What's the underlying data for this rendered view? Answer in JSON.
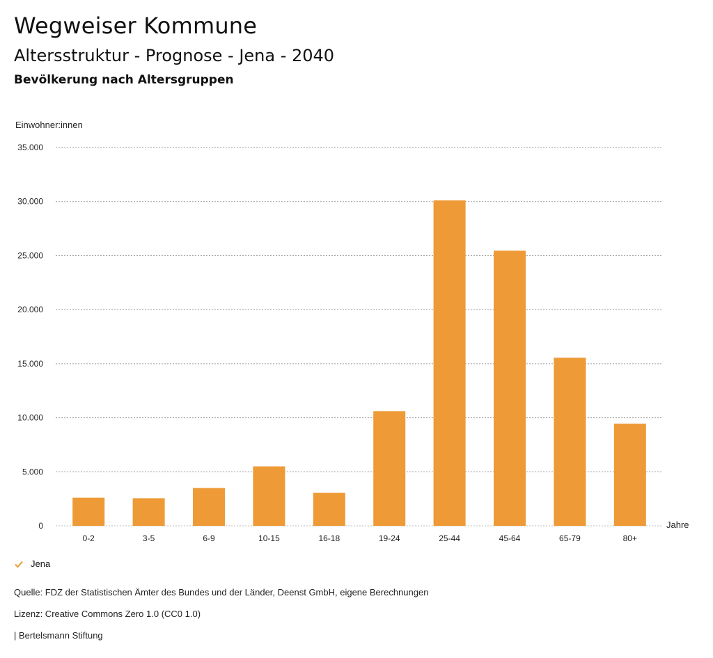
{
  "header": {
    "title": "Wegweiser Kommune",
    "subtitle": "Altersstruktur - Prognose - Jena - 2040",
    "subsubtitle": "Bevölkerung nach Altersgruppen"
  },
  "chart_data": {
    "type": "bar",
    "ylabel": "Einwohner:innen",
    "xlabel": "Jahre",
    "categories": [
      "0-2",
      "3-5",
      "6-9",
      "10-15",
      "16-18",
      "19-24",
      "25-44",
      "45-64",
      "65-79",
      "80+"
    ],
    "series": [
      {
        "name": "Jena",
        "values": [
          2600,
          2550,
          3500,
          5500,
          3050,
          10600,
          30100,
          25450,
          15550,
          9450
        ]
      }
    ],
    "ylim": [
      0,
      35000
    ],
    "yticks": [
      0,
      5000,
      10000,
      15000,
      20000,
      25000,
      30000,
      35000
    ],
    "ytick_labels": [
      "0",
      "5.000",
      "10.000",
      "15.000",
      "20.000",
      "25.000",
      "30.000",
      "35.000"
    ],
    "grid": true,
    "color": "#ee9a36",
    "legend_position": "bottom-left"
  },
  "legend": {
    "label": "Jena",
    "icon": "check-icon"
  },
  "footer": {
    "source": "Quelle: FDZ der Statistischen Ämter des Bundes und der Länder, Deenst GmbH, eigene Berechnungen",
    "license": "Lizenz: Creative Commons Zero 1.0 (CC0 1.0)",
    "org": "| Bertelsmann Stiftung"
  }
}
